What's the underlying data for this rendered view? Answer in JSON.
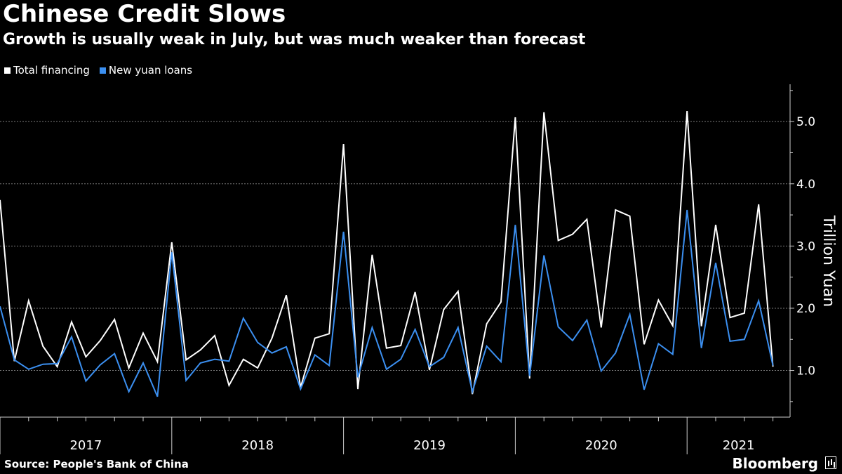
{
  "title": "Chinese Credit Slows",
  "subtitle": "Growth is usually weak in July, but was much weaker than forecast",
  "source": "Source: People's Bank of China",
  "brand": "Bloomberg",
  "chart_data": {
    "type": "line",
    "ylabel": "Trillion Yuan",
    "ylim": [
      0.25,
      5.6
    ],
    "yticks": [
      1.0,
      2.0,
      3.0,
      4.0,
      5.0
    ],
    "ytick_labels": [
      "1.0",
      "2.0",
      "3.0",
      "4.0",
      "5.0"
    ],
    "grid": true,
    "legend_position": "top-left",
    "x_start": "2017-01",
    "year_labels": [
      "2017",
      "2018",
      "2019",
      "2020",
      "2021"
    ],
    "x": [
      "2017-01",
      "2017-02",
      "2017-03",
      "2017-04",
      "2017-05",
      "2017-06",
      "2017-07",
      "2017-08",
      "2017-09",
      "2017-10",
      "2017-11",
      "2017-12",
      "2018-01",
      "2018-02",
      "2018-03",
      "2018-04",
      "2018-05",
      "2018-06",
      "2018-07",
      "2018-08",
      "2018-09",
      "2018-10",
      "2018-11",
      "2018-12",
      "2019-01",
      "2019-02",
      "2019-03",
      "2019-04",
      "2019-05",
      "2019-06",
      "2019-07",
      "2019-08",
      "2019-09",
      "2019-10",
      "2019-11",
      "2019-12",
      "2020-01",
      "2020-02",
      "2020-03",
      "2020-04",
      "2020-05",
      "2020-06",
      "2020-07",
      "2020-08",
      "2020-09",
      "2020-10",
      "2020-11",
      "2020-12",
      "2021-01",
      "2021-02",
      "2021-03",
      "2021-04",
      "2021-05",
      "2021-06",
      "2021-07"
    ],
    "series": [
      {
        "name": "Total financing",
        "color": "#ffffff",
        "values": [
          3.74,
          1.15,
          2.12,
          1.39,
          1.06,
          1.78,
          1.22,
          1.48,
          1.82,
          1.04,
          1.6,
          1.14,
          3.06,
          1.17,
          1.33,
          1.56,
          0.76,
          1.18,
          1.04,
          1.52,
          2.21,
          0.73,
          1.52,
          1.59,
          4.64,
          0.7,
          2.86,
          1.36,
          1.4,
          2.26,
          1.01,
          1.98,
          2.27,
          0.62,
          1.75,
          2.1,
          5.07,
          0.87,
          5.15,
          3.09,
          3.19,
          3.43,
          1.69,
          3.58,
          3.48,
          1.42,
          2.13,
          1.72,
          5.17,
          1.71,
          3.34,
          1.85,
          1.92,
          3.67,
          1.06
        ]
      },
      {
        "name": "New yuan loans",
        "color": "#3b8ff0",
        "values": [
          2.03,
          1.17,
          1.02,
          1.1,
          1.11,
          1.54,
          0.83,
          1.09,
          1.27,
          0.66,
          1.12,
          0.58,
          2.9,
          0.84,
          1.12,
          1.18,
          1.15,
          1.84,
          1.45,
          1.28,
          1.38,
          0.7,
          1.25,
          1.08,
          3.23,
          0.89,
          1.69,
          1.02,
          1.18,
          1.66,
          1.06,
          1.21,
          1.69,
          0.66,
          1.39,
          1.14,
          3.34,
          0.91,
          2.85,
          1.7,
          1.48,
          1.81,
          0.99,
          1.28,
          1.9,
          0.69,
          1.43,
          1.26,
          3.58,
          1.36,
          2.73,
          1.47,
          1.5,
          2.12,
          1.08
        ]
      }
    ]
  }
}
